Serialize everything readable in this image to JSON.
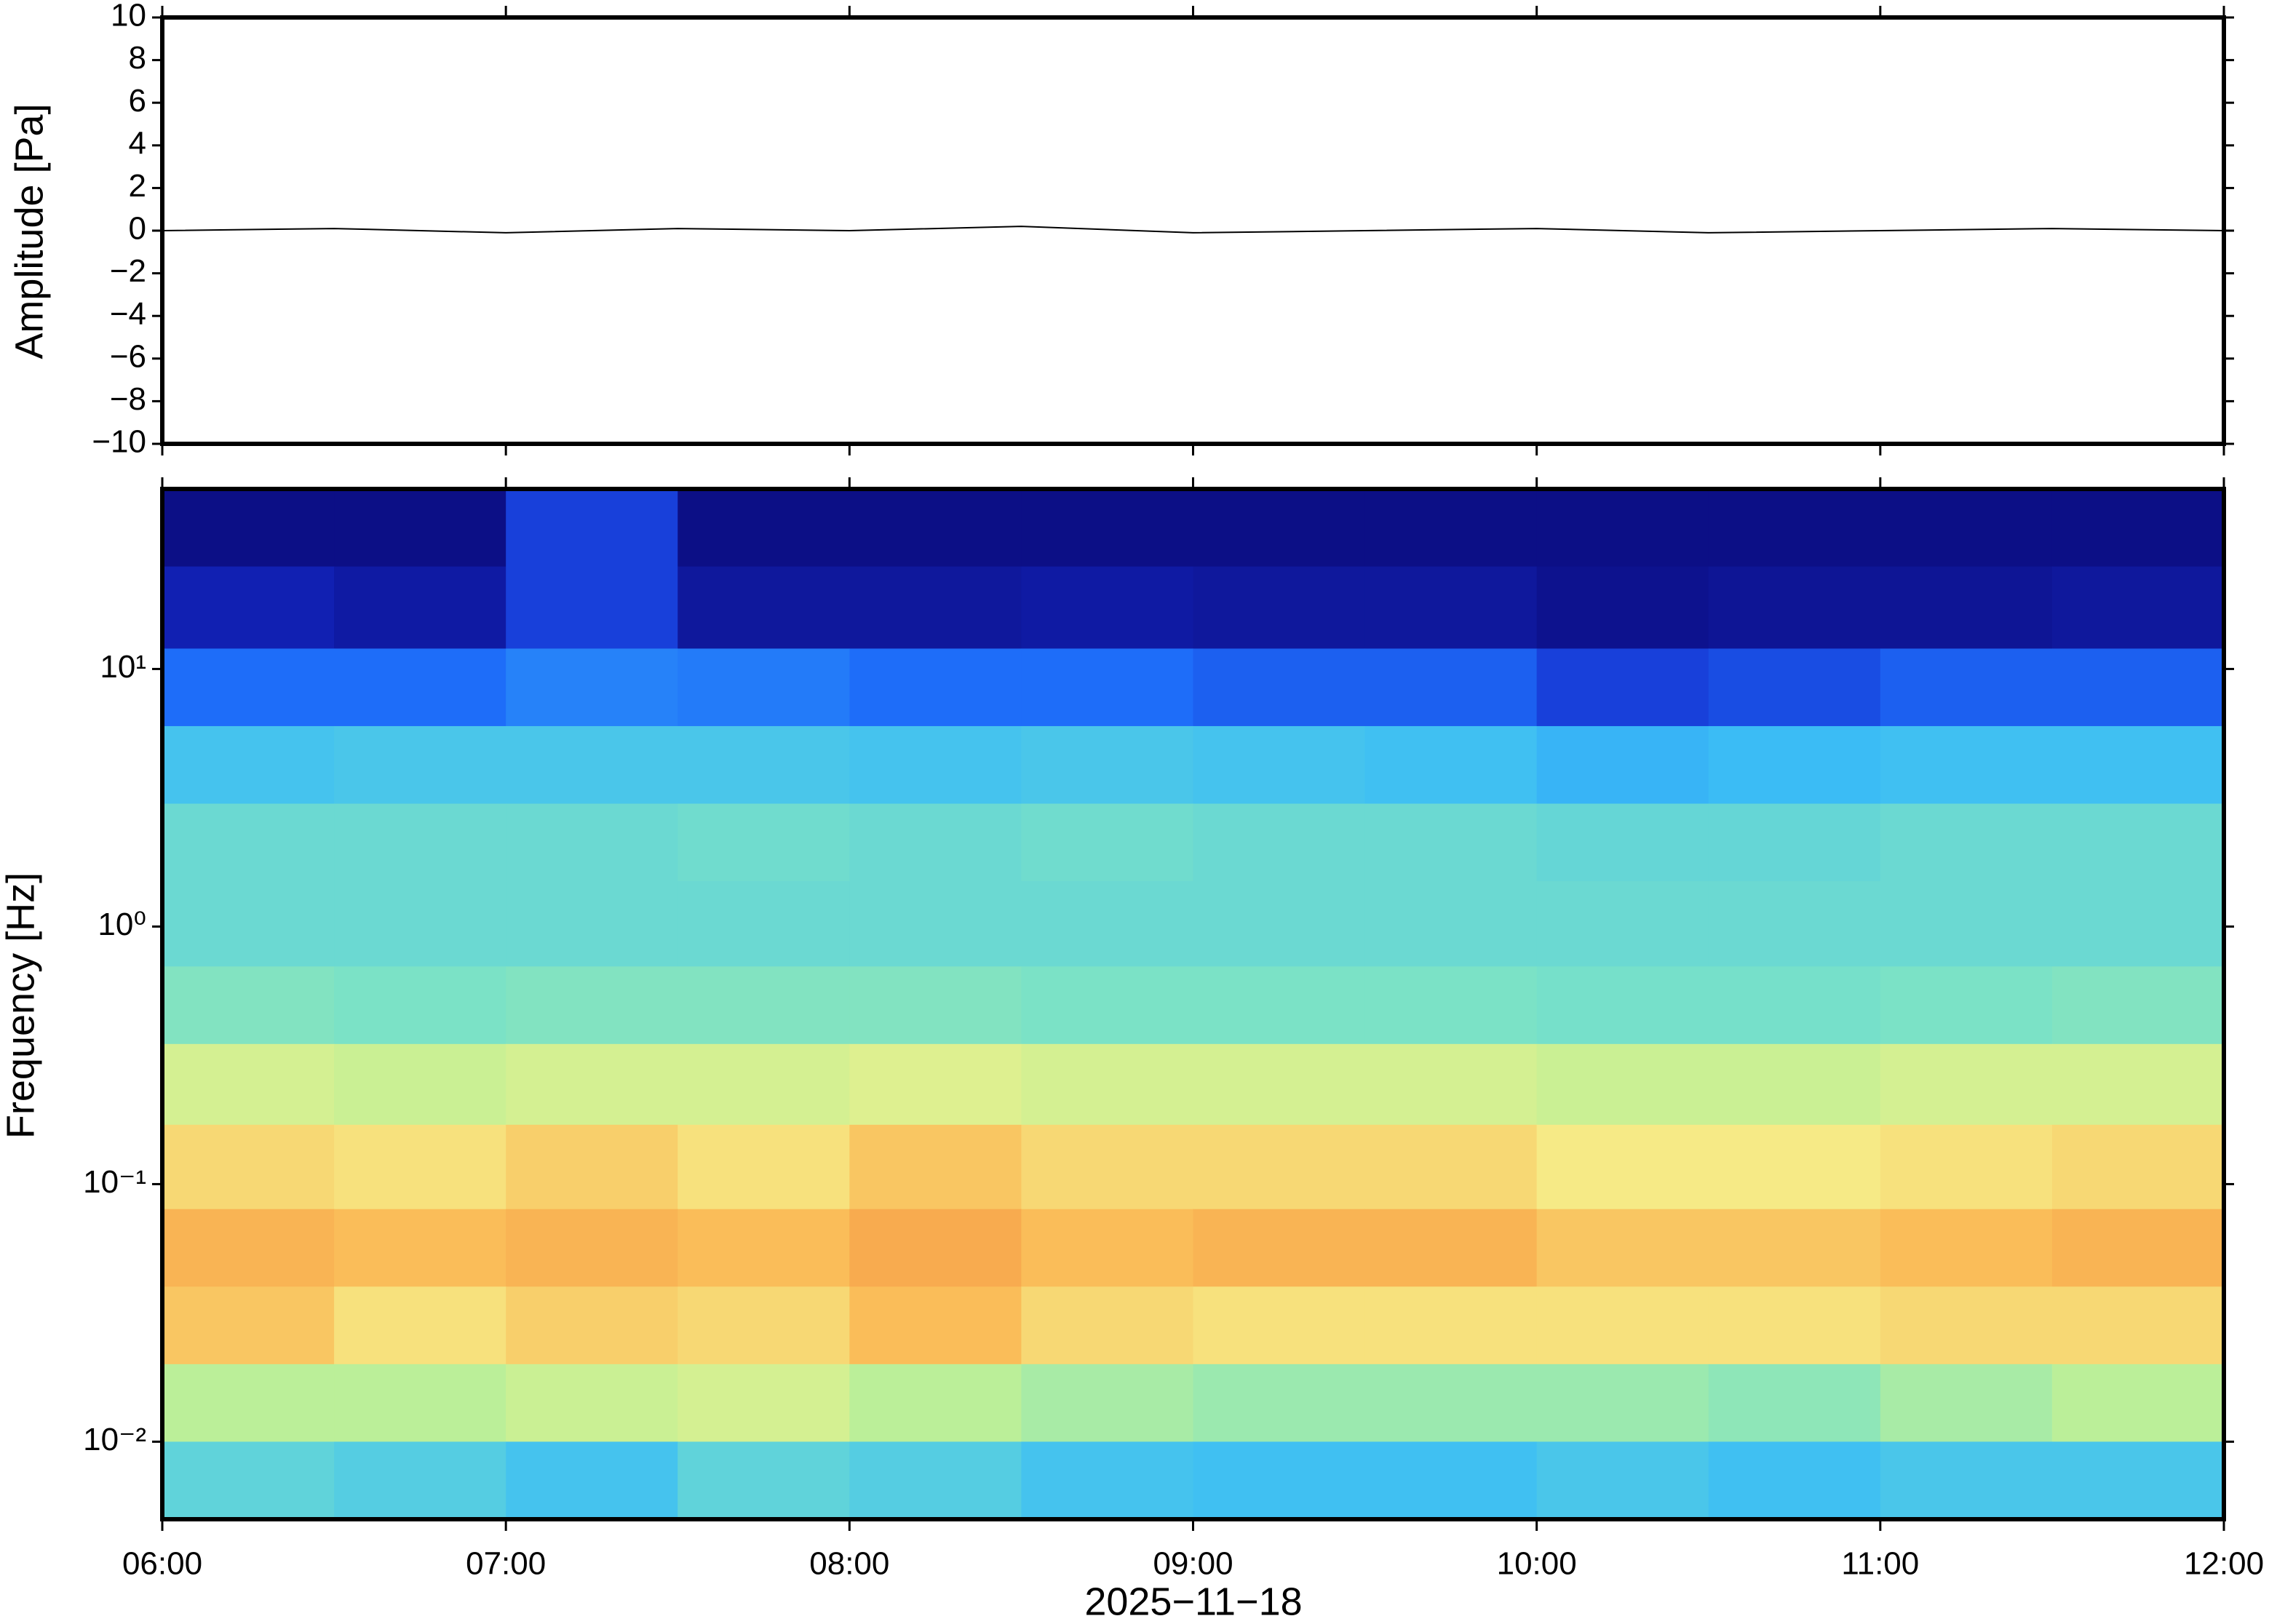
{
  "chart_data": [
    {
      "type": "line",
      "ylabel": "Amplitude [Pa]",
      "ylim": [
        -10,
        10
      ],
      "yticks": [
        {
          "value": -10,
          "label": "−10"
        },
        {
          "value": -8,
          "label": "−8"
        },
        {
          "value": -6,
          "label": "−6"
        },
        {
          "value": -4,
          "label": "−4"
        },
        {
          "value": -2,
          "label": "−2"
        },
        0,
        2,
        4,
        6,
        8,
        10
      ],
      "x": [
        "06:00",
        "06:30",
        "07:00",
        "07:30",
        "08:00",
        "08:30",
        "09:00",
        "09:30",
        "10:00",
        "10:30",
        "11:00",
        "11:30",
        "12:00"
      ],
      "values": [
        0,
        0.1,
        -0.1,
        0.1,
        0,
        0.2,
        -0.1,
        0,
        0.1,
        -0.1,
        0,
        0.1,
        0
      ],
      "color": "#000000"
    },
    {
      "type": "heatmap",
      "ylabel": "Frequency [Hz]",
      "xlabel": "2025−11−18",
      "log_y": true,
      "xlim": [
        "06:00",
        "12:00"
      ],
      "xticks": [
        "06:00",
        "07:00",
        "08:00",
        "09:00",
        "10:00",
        "11:00",
        "12:00"
      ],
      "ylim": [
        0.005,
        50
      ],
      "yticks": [
        {
          "value": 0.01,
          "label": "10⁻²"
        },
        {
          "value": 0.1,
          "label": "10⁻¹"
        },
        {
          "value": 1,
          "label": "10⁰"
        },
        {
          "value": 10,
          "label": "10¹"
        }
      ],
      "x_edges": [
        "06:00",
        "06:30",
        "07:00",
        "07:30",
        "08:00",
        "08:30",
        "09:00",
        "09:30",
        "10:00",
        "10:30",
        "11:00",
        "11:30",
        "12:00"
      ],
      "y_edges": [
        50,
        25,
        12,
        6,
        3,
        1.5,
        0.7,
        0.35,
        0.17,
        0.08,
        0.04,
        0.02,
        0.01,
        0.005
      ],
      "z": [
        [
          0.02,
          0.02,
          0.15,
          0.02,
          0.02,
          0.02,
          0.02,
          0.02,
          0.02,
          0.02,
          0.02,
          0.02
        ],
        [
          0.08,
          0.06,
          0.15,
          0.05,
          0.05,
          0.06,
          0.05,
          0.05,
          0.03,
          0.04,
          0.04,
          0.05
        ],
        [
          0.22,
          0.22,
          0.25,
          0.24,
          0.22,
          0.22,
          0.2,
          0.2,
          0.15,
          0.17,
          0.2,
          0.2
        ],
        [
          0.35,
          0.36,
          0.36,
          0.36,
          0.35,
          0.36,
          0.35,
          0.34,
          0.32,
          0.33,
          0.34,
          0.34
        ],
        [
          0.42,
          0.42,
          0.42,
          0.43,
          0.42,
          0.43,
          0.42,
          0.42,
          0.41,
          0.41,
          0.42,
          0.42
        ],
        [
          0.42,
          0.42,
          0.42,
          0.42,
          0.42,
          0.42,
          0.42,
          0.42,
          0.42,
          0.42,
          0.42,
          0.42
        ],
        [
          0.46,
          0.45,
          0.46,
          0.46,
          0.46,
          0.45,
          0.45,
          0.45,
          0.44,
          0.44,
          0.45,
          0.46
        ],
        [
          0.6,
          0.58,
          0.6,
          0.6,
          0.62,
          0.6,
          0.6,
          0.6,
          0.58,
          0.58,
          0.6,
          0.6
        ],
        [
          0.72,
          0.7,
          0.74,
          0.7,
          0.76,
          0.72,
          0.72,
          0.72,
          0.68,
          0.68,
          0.7,
          0.72
        ],
        [
          0.8,
          0.78,
          0.8,
          0.78,
          0.82,
          0.78,
          0.8,
          0.8,
          0.76,
          0.76,
          0.78,
          0.8
        ],
        [
          0.76,
          0.7,
          0.74,
          0.72,
          0.78,
          0.72,
          0.7,
          0.7,
          0.7,
          0.7,
          0.72,
          0.72
        ],
        [
          0.55,
          0.55,
          0.58,
          0.6,
          0.55,
          0.52,
          0.5,
          0.5,
          0.5,
          0.48,
          0.52,
          0.55
        ],
        [
          0.4,
          0.38,
          0.35,
          0.4,
          0.38,
          0.35,
          0.34,
          0.34,
          0.36,
          0.34,
          0.36,
          0.36
        ]
      ]
    }
  ]
}
